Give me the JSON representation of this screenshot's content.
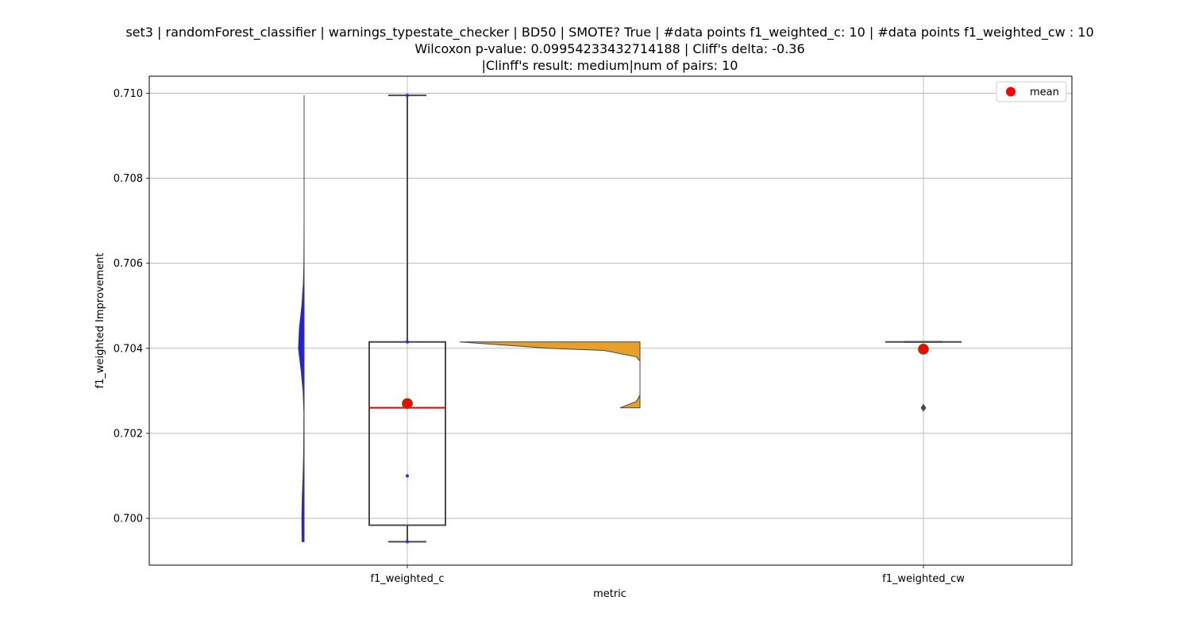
{
  "chart_data": {
    "type": "violin-box",
    "title_lines": [
      "set3 | randomForest_classifier | warnings_typestate_checker | BD50 | SMOTE? True | #data points f1_weighted_c: 10 | #data points f1_weighted_cw : 10",
      "Wilcoxon p-value: 0.09954233432714188 | Cliff's delta: -0.36",
      "|Clinff's result: medium|num of pairs: 10"
    ],
    "xlabel": "metric",
    "ylabel": "f1_weighted Improvement",
    "categories": [
      "f1_weighted_c",
      "f1_weighted_cw"
    ],
    "ylim": [
      0.6989,
      0.7104
    ],
    "yticks": [
      0.7,
      0.702,
      0.704,
      0.706,
      0.708,
      0.71
    ],
    "ytick_labels": [
      "0.700",
      "0.702",
      "0.704",
      "0.706",
      "0.708",
      "0.710"
    ],
    "grid": true,
    "legend": {
      "label": "mean",
      "placement": "top-right"
    },
    "series": [
      {
        "category": "f1_weighted_c",
        "violin_color": "#1f1fe6",
        "box": {
          "whisker_low": 0.69945,
          "q1": 0.69984,
          "median": 0.7026,
          "q3": 0.70415,
          "whisker_high": 0.70995
        },
        "mean": 0.7027,
        "points": [
          0.69945,
          0.701,
          0.70415,
          0.70995
        ],
        "density": [
          [
            0.69945,
            0.2
          ],
          [
            0.7,
            0.22
          ],
          [
            0.7005,
            0.18
          ],
          [
            0.701,
            0.1
          ],
          [
            0.7015,
            0.05
          ],
          [
            0.702,
            0.03
          ],
          [
            0.7025,
            0.02
          ],
          [
            0.703,
            0.1
          ],
          [
            0.7035,
            0.3
          ],
          [
            0.704,
            0.55
          ],
          [
            0.7045,
            0.45
          ],
          [
            0.705,
            0.22
          ],
          [
            0.7055,
            0.08
          ],
          [
            0.706,
            0.02
          ],
          [
            0.707,
            0.0
          ],
          [
            0.708,
            0.0
          ],
          [
            0.709,
            0.0
          ],
          [
            0.70995,
            0.0
          ]
        ]
      },
      {
        "category": "f1_weighted_cw",
        "violin_color": "#e8a02a",
        "box": {
          "whisker_low": 0.70415,
          "q1": 0.70415,
          "median": 0.70415,
          "q3": 0.70415,
          "whisker_high": 0.70415
        },
        "mean": 0.70398,
        "outliers": [
          0.7026
        ],
        "density": [
          [
            0.7026,
            0.11
          ],
          [
            0.70275,
            0.02
          ],
          [
            0.7029,
            0.0
          ],
          [
            0.7031,
            0.0
          ],
          [
            0.7033,
            0.0
          ],
          [
            0.7035,
            0.0
          ],
          [
            0.7037,
            0.0
          ],
          [
            0.7038,
            0.02
          ],
          [
            0.70395,
            0.2
          ],
          [
            0.704,
            0.5
          ],
          [
            0.70415,
            1.0
          ]
        ]
      }
    ]
  }
}
